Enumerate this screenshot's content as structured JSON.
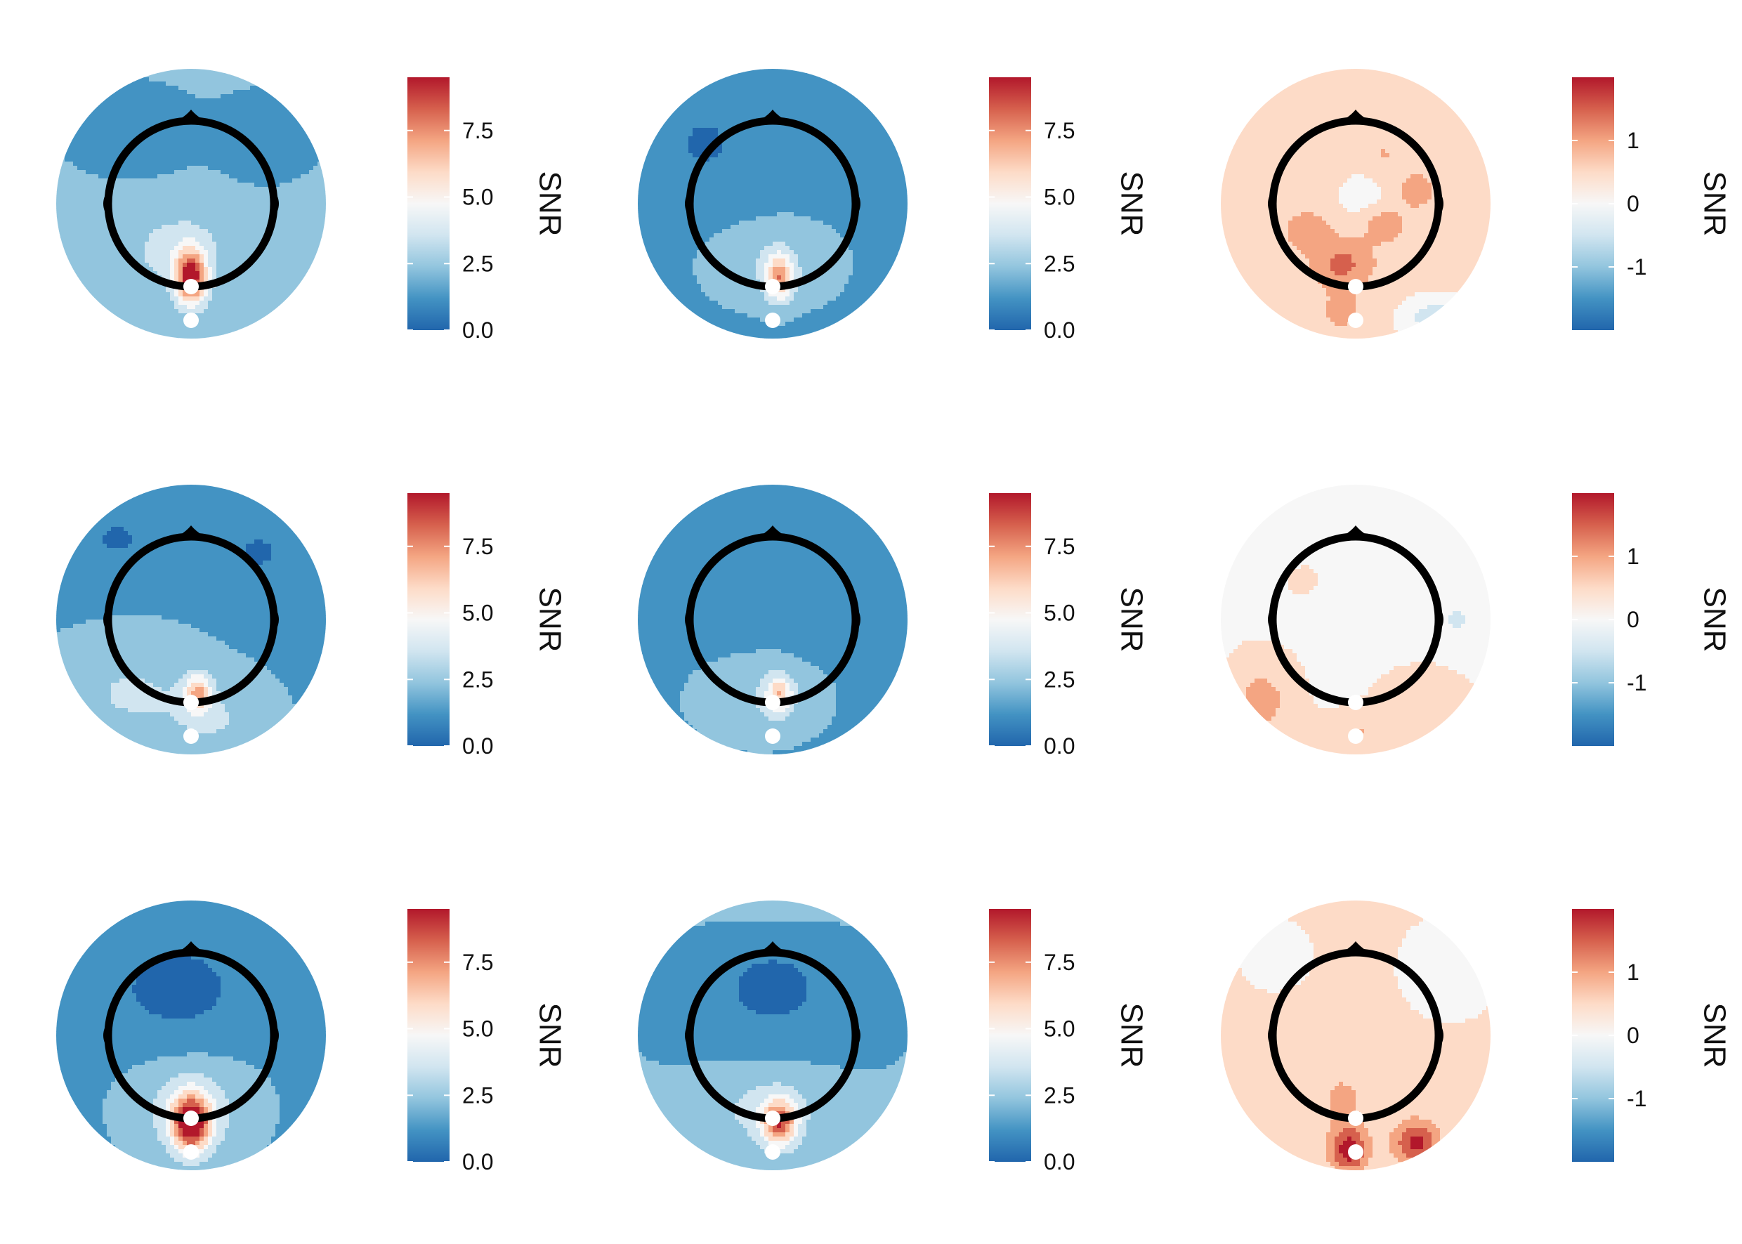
{
  "colors": {
    "scale": [
      "#2166ac",
      "#4393c3",
      "#92c5de",
      "#d1e5f0",
      "#f7f7f7",
      "#fddbc7",
      "#f4a582",
      "#d6604d",
      "#b2182b"
    ],
    "head_outline": "#000000",
    "marker": "#ffffff"
  },
  "chart_data": {
    "type": "heatmap",
    "title": "",
    "description_layout": "3 rows x 3 columns of scalp topographic maps, each with its own colorbar",
    "panels": [
      {
        "row": 1,
        "col": 1,
        "legend_title": "SNR",
        "limits": [
          0,
          9.5
        ],
        "ticks": [
          0.0,
          2.5,
          5.0,
          7.5
        ],
        "tick_labels": [
          "0.0",
          "2.5",
          "5.0",
          "7.5"
        ],
        "baseline": 2.0,
        "blobs": [
          {
            "x": 0.0,
            "y": -0.55,
            "sx": 0.08,
            "sy": 0.14,
            "a": 7.5
          },
          {
            "x": -0.1,
            "y": -0.35,
            "sx": 0.25,
            "sy": 0.2,
            "a": 1.6
          },
          {
            "x": -0.45,
            "y": 0.55,
            "sx": 0.3,
            "sy": 0.2,
            "a": -1.4
          },
          {
            "x": 0.55,
            "y": 0.5,
            "sx": 0.25,
            "sy": 0.2,
            "a": -1.2
          }
        ]
      },
      {
        "row": 1,
        "col": 2,
        "legend_title": "SNR",
        "limits": [
          0,
          9.5
        ],
        "ticks": [
          0.0,
          2.5,
          5.0,
          7.5
        ],
        "tick_labels": [
          "0.0",
          "2.5",
          "5.0",
          "7.5"
        ],
        "baseline": 1.6,
        "blobs": [
          {
            "x": 0.05,
            "y": -0.55,
            "sx": 0.07,
            "sy": 0.12,
            "a": 5.0
          },
          {
            "x": 0.0,
            "y": -0.45,
            "sx": 0.3,
            "sy": 0.2,
            "a": 1.3
          },
          {
            "x": -0.5,
            "y": 0.45,
            "sx": 0.3,
            "sy": 0.3,
            "a": -1.1
          },
          {
            "x": 0.7,
            "y": 0.6,
            "sx": 0.2,
            "sy": 0.2,
            "a": -1.0
          }
        ]
      },
      {
        "row": 1,
        "col": 3,
        "legend_title": "SNR",
        "limits": [
          -2,
          2
        ],
        "ticks": [
          -1,
          0,
          1
        ],
        "tick_labels": [
          "-1",
          "0",
          "1"
        ],
        "baseline": 0.5,
        "blobs": [
          {
            "x": -0.1,
            "y": -0.45,
            "sx": 0.15,
            "sy": 0.12,
            "a": 0.9
          },
          {
            "x": -0.35,
            "y": -0.2,
            "sx": 0.12,
            "sy": 0.1,
            "a": 0.6
          },
          {
            "x": 0.2,
            "y": -0.15,
            "sx": 0.12,
            "sy": 0.1,
            "a": 0.6
          },
          {
            "x": 0.45,
            "y": 0.1,
            "sx": 0.1,
            "sy": 0.1,
            "a": 0.5
          },
          {
            "x": 0.2,
            "y": 0.35,
            "sx": 0.1,
            "sy": 0.1,
            "a": 0.3
          },
          {
            "x": 0.05,
            "y": 0.05,
            "sx": 0.15,
            "sy": 0.15,
            "a": -0.5
          },
          {
            "x": 0.6,
            "y": -0.85,
            "sx": 0.2,
            "sy": 0.12,
            "a": -1.0
          },
          {
            "x": -0.1,
            "y": -0.8,
            "sx": 0.12,
            "sy": 0.1,
            "a": 0.4
          }
        ]
      },
      {
        "row": 2,
        "col": 1,
        "legend_title": "SNR",
        "limits": [
          0,
          9.5
        ],
        "ticks": [
          0.0,
          2.5,
          5.0,
          7.5
        ],
        "tick_labels": [
          "0.0",
          "2.5",
          "5.0",
          "7.5"
        ],
        "baseline": 1.7,
        "blobs": [
          {
            "x": 0.05,
            "y": -0.55,
            "sx": 0.07,
            "sy": 0.1,
            "a": 4.5
          },
          {
            "x": -0.45,
            "y": -0.55,
            "sx": 0.35,
            "sy": 0.25,
            "a": 1.4
          },
          {
            "x": 0.2,
            "y": -0.75,
            "sx": 0.25,
            "sy": 0.2,
            "a": 1.2
          },
          {
            "x": -0.55,
            "y": 0.6,
            "sx": 0.25,
            "sy": 0.2,
            "a": -1.2
          },
          {
            "x": 0.5,
            "y": 0.5,
            "sx": 0.25,
            "sy": 0.2,
            "a": -1.2
          }
        ]
      },
      {
        "row": 2,
        "col": 2,
        "legend_title": "SNR",
        "limits": [
          0,
          9.5
        ],
        "ticks": [
          0.0,
          2.5,
          5.0,
          7.5
        ],
        "tick_labels": [
          "0.0",
          "2.5",
          "5.0",
          "7.5"
        ],
        "baseline": 1.6,
        "blobs": [
          {
            "x": 0.05,
            "y": -0.55,
            "sx": 0.07,
            "sy": 0.1,
            "a": 4.0
          },
          {
            "x": -0.1,
            "y": -0.6,
            "sx": 0.3,
            "sy": 0.2,
            "a": 1.2
          },
          {
            "x": -0.4,
            "y": 0.35,
            "sx": 0.25,
            "sy": 0.25,
            "a": -1.0
          },
          {
            "x": 0.4,
            "y": 0.35,
            "sx": 0.25,
            "sy": 0.25,
            "a": -1.0
          }
        ]
      },
      {
        "row": 2,
        "col": 3,
        "legend_title": "SNR",
        "limits": [
          -2,
          2
        ],
        "ticks": [
          -1,
          0,
          1
        ],
        "tick_labels": [
          "-1",
          "0",
          "1"
        ],
        "baseline": 0.1,
        "blobs": [
          {
            "x": -0.7,
            "y": -0.6,
            "sx": 0.2,
            "sy": 0.25,
            "a": 0.8
          },
          {
            "x": 0.5,
            "y": -0.65,
            "sx": 0.25,
            "sy": 0.2,
            "a": 0.6
          },
          {
            "x": 0.0,
            "y": -0.85,
            "sx": 0.2,
            "sy": 0.12,
            "a": 0.6
          },
          {
            "x": -0.4,
            "y": 0.3,
            "sx": 0.08,
            "sy": 0.08,
            "a": 0.4
          },
          {
            "x": 0.75,
            "y": 0.0,
            "sx": 0.12,
            "sy": 0.12,
            "a": -0.4
          },
          {
            "x": -0.6,
            "y": 0.55,
            "sx": 0.15,
            "sy": 0.12,
            "a": -0.3
          }
        ]
      },
      {
        "row": 3,
        "col": 1,
        "legend_title": "SNR",
        "limits": [
          0,
          9.5
        ],
        "ticks": [
          0.0,
          2.5,
          5.0,
          7.5
        ],
        "tick_labels": [
          "0.0",
          "2.5",
          "5.0",
          "7.5"
        ],
        "baseline": 1.6,
        "blobs": [
          {
            "x": 0.0,
            "y": -0.65,
            "sx": 0.1,
            "sy": 0.15,
            "a": 8.0
          },
          {
            "x": 0.0,
            "y": -0.55,
            "sx": 0.3,
            "sy": 0.25,
            "a": 2.0
          },
          {
            "x": -0.1,
            "y": 0.35,
            "sx": 0.4,
            "sy": 0.3,
            "a": -1.4
          }
        ]
      },
      {
        "row": 3,
        "col": 2,
        "legend_title": "SNR",
        "limits": [
          0,
          9.5
        ],
        "ticks": [
          0.0,
          2.5,
          5.0,
          7.5
        ],
        "tick_labels": [
          "0.0",
          "2.5",
          "5.0",
          "7.5"
        ],
        "baseline": 1.8,
        "blobs": [
          {
            "x": 0.05,
            "y": -0.65,
            "sx": 0.09,
            "sy": 0.12,
            "a": 6.0
          },
          {
            "x": -0.05,
            "y": -0.55,
            "sx": 0.3,
            "sy": 0.2,
            "a": 1.6
          },
          {
            "x": 0.0,
            "y": 0.35,
            "sx": 0.4,
            "sy": 0.3,
            "a": -1.5
          },
          {
            "x": 0.0,
            "y": 0.95,
            "sx": 0.5,
            "sy": 0.1,
            "a": 0.6
          }
        ]
      },
      {
        "row": 3,
        "col": 3,
        "legend_title": "SNR",
        "limits": [
          -2,
          2
        ],
        "ticks": [
          -1,
          0,
          1
        ],
        "tick_labels": [
          "-1",
          "0",
          "1"
        ],
        "baseline": 0.3,
        "blobs": [
          {
            "x": -0.05,
            "y": -0.85,
            "sx": 0.1,
            "sy": 0.12,
            "a": 1.7
          },
          {
            "x": 0.45,
            "y": -0.8,
            "sx": 0.12,
            "sy": 0.12,
            "a": 1.6
          },
          {
            "x": -0.1,
            "y": -0.45,
            "sx": 0.2,
            "sy": 0.2,
            "a": 0.5
          },
          {
            "x": -0.55,
            "y": -0.1,
            "sx": 0.12,
            "sy": 0.15,
            "a": 0.4
          },
          {
            "x": 0.7,
            "y": 0.5,
            "sx": 0.2,
            "sy": 0.2,
            "a": -0.4
          },
          {
            "x": -0.6,
            "y": 0.6,
            "sx": 0.15,
            "sy": 0.15,
            "a": -0.3
          }
        ]
      }
    ]
  }
}
